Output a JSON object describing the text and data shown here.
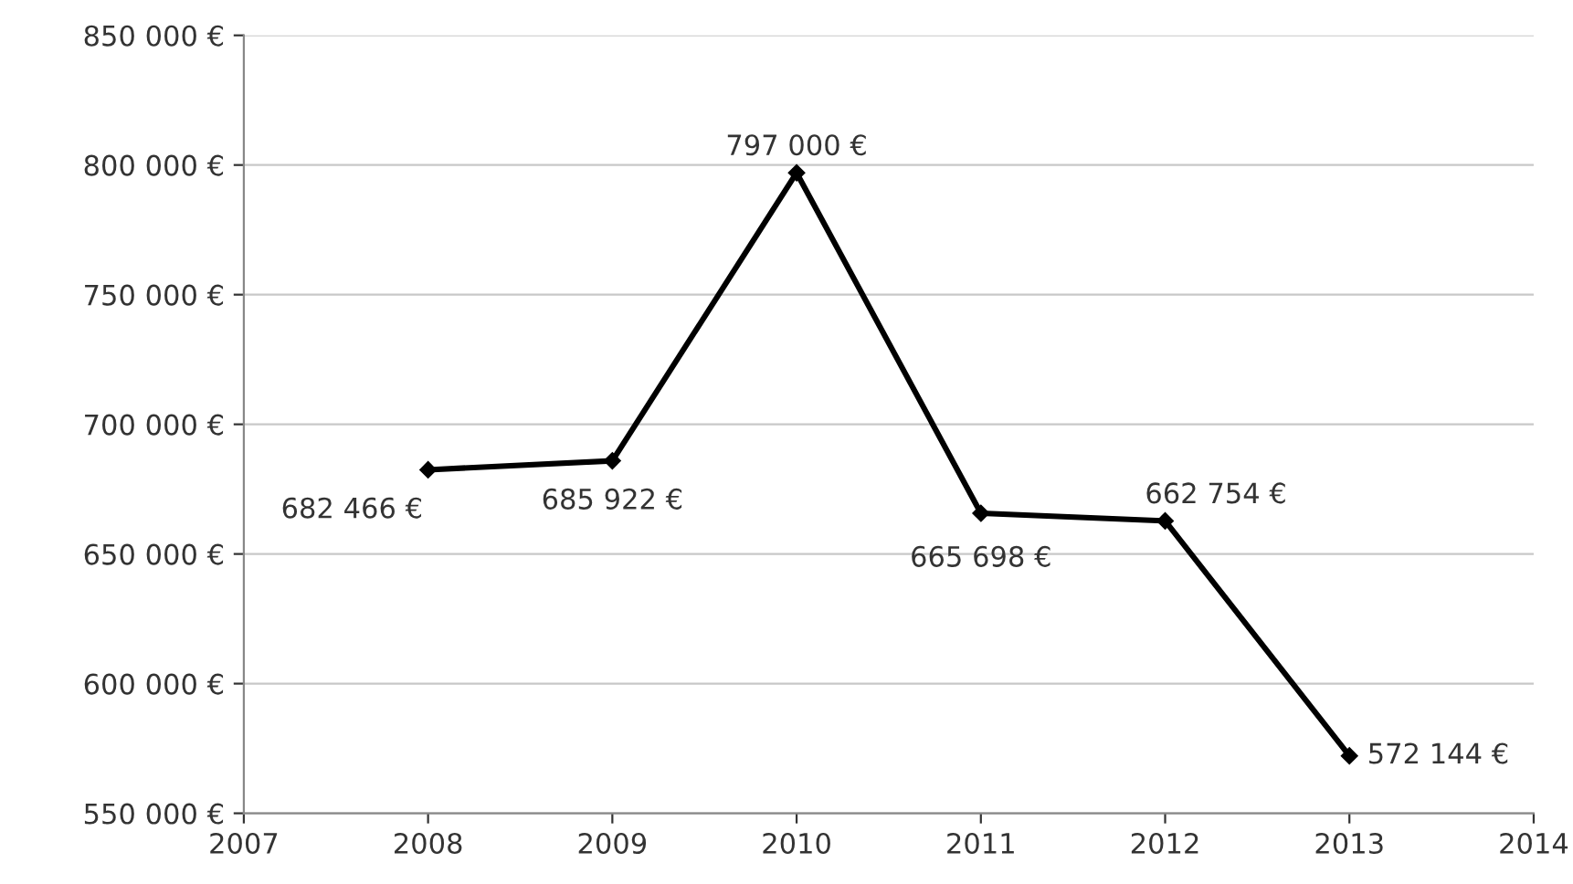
{
  "chart_data": {
    "type": "line",
    "x": [
      2008,
      2009,
      2010,
      2011,
      2012,
      2013
    ],
    "series": [
      {
        "color": "#000000",
        "values": [
          682466,
          685922,
          797000,
          665698,
          662754,
          572144
        ],
        "value_labels": [
          "682 466 €",
          "685 922 €",
          "797 000 €",
          "665 698 €",
          "662 754 €",
          "572 144 €"
        ]
      }
    ],
    "xlim": [
      2007,
      2014
    ],
    "xticks": [
      2007,
      2008,
      2009,
      2010,
      2011,
      2012,
      2013,
      2014
    ],
    "ylim": [
      550000,
      850000
    ],
    "yticks": [
      {
        "value": 550000,
        "label": "550 000 €"
      },
      {
        "value": 600000,
        "label": "600 000 €"
      },
      {
        "value": 650000,
        "label": "650 000 €"
      },
      {
        "value": 700000,
        "label": "700 000 €"
      },
      {
        "value": 750000,
        "label": "750 000 €"
      },
      {
        "value": 800000,
        "label": "800 000 €"
      },
      {
        "value": 850000,
        "label": "850 000 €"
      }
    ],
    "grid": "y",
    "marker": "diamond",
    "line_style": "solid",
    "legend": false
  }
}
